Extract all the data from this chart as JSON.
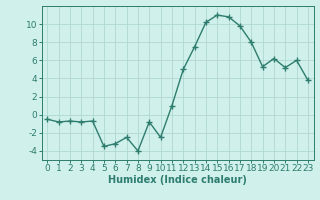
{
  "x": [
    0,
    1,
    2,
    3,
    4,
    5,
    6,
    7,
    8,
    9,
    10,
    11,
    12,
    13,
    14,
    15,
    16,
    17,
    18,
    19,
    20,
    21,
    22,
    23
  ],
  "y": [
    -0.5,
    -0.8,
    -0.7,
    -0.8,
    -0.7,
    -3.5,
    -3.2,
    -2.5,
    -4.0,
    -0.8,
    -2.5,
    1.0,
    5.0,
    7.5,
    10.2,
    11.0,
    10.8,
    9.8,
    8.0,
    5.3,
    6.2,
    5.2,
    6.0,
    3.8
  ],
  "line_color": "#2e7d6e",
  "marker": "+",
  "markersize": 4,
  "linewidth": 1.0,
  "bg_color": "#cff0eb",
  "grid_color": "#afd8d0",
  "xlabel": "Humidex (Indice chaleur)",
  "xlim": [
    -0.5,
    23.5
  ],
  "ylim": [
    -5,
    12
  ],
  "yticks": [
    -4,
    -2,
    0,
    2,
    4,
    6,
    8,
    10
  ],
  "xticks": [
    0,
    1,
    2,
    3,
    4,
    5,
    6,
    7,
    8,
    9,
    10,
    11,
    12,
    13,
    14,
    15,
    16,
    17,
    18,
    19,
    20,
    21,
    22,
    23
  ],
  "xlabel_fontsize": 7,
  "tick_fontsize": 6.5
}
